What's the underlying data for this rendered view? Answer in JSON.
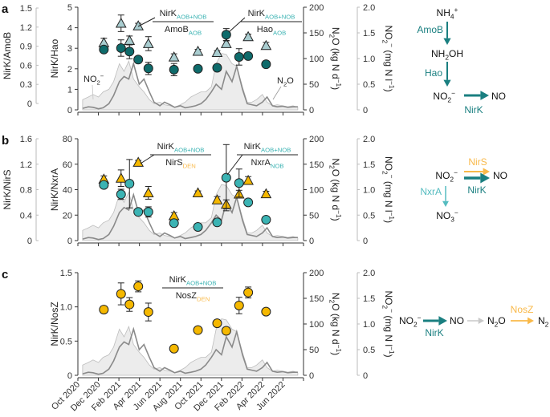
{
  "chart_data": {
    "type": "scatter+line+area",
    "x_axis": {
      "range": [
        "2020-10-01",
        "2022-08-01"
      ],
      "tick_labels": [
        "Oct 2020",
        "Dec 2020",
        "Feb 2021",
        "Apr 2021",
        "Jun 2021",
        "Aug 2021",
        "Oct 2021",
        "Dec 2021",
        "Feb 2022",
        "Apr 2022",
        "Jun 2022"
      ]
    },
    "right_axes": {
      "n2o": {
        "label": [
          [
            "N",
            ""
          ],
          [
            "2",
            "sub"
          ],
          [
            "O (kg N d",
            ""
          ],
          [
            "−1",
            "sup"
          ],
          [
            ")",
            ""
          ]
        ],
        "range": [
          0,
          200
        ],
        "ticks": [
          "0",
          "50",
          "100",
          "150",
          "200"
        ]
      },
      "no2": {
        "label": [
          [
            "NO",
            ""
          ],
          [
            "2",
            "sub"
          ],
          [
            "−",
            "sup"
          ],
          [
            " (mg N l",
            ""
          ],
          [
            "−1",
            "sup"
          ],
          [
            ")",
            ""
          ]
        ],
        "range": [
          0,
          2
        ],
        "ticks": [
          "0",
          "0.5",
          "1.0",
          "1.5",
          "2.0"
        ]
      }
    },
    "environment": {
      "dates": [
        "2020-10-15",
        "2020-11-01",
        "2020-11-15",
        "2020-12-01",
        "2020-12-15",
        "2021-01-01",
        "2021-01-15",
        "2021-02-01",
        "2021-02-15",
        "2021-03-01",
        "2021-03-15",
        "2021-04-01",
        "2021-04-15",
        "2021-05-01",
        "2021-05-15",
        "2021-06-01",
        "2021-06-15",
        "2021-07-01",
        "2021-07-15",
        "2021-08-01",
        "2021-08-15",
        "2021-09-01",
        "2021-09-15",
        "2021-10-01",
        "2021-10-15",
        "2021-11-01",
        "2021-11-15",
        "2021-12-01",
        "2021-12-15",
        "2022-01-01",
        "2022-01-15",
        "2022-02-01",
        "2022-02-15",
        "2022-03-01",
        "2022-03-15",
        "2022-04-01",
        "2022-04-15",
        "2022-05-01",
        "2022-05-15",
        "2022-06-01",
        "2022-06-15",
        "2022-07-01",
        "2022-07-15"
      ],
      "n2o_kgN_per_day": [
        3,
        6,
        5,
        2,
        4,
        12,
        28,
        55,
        65,
        60,
        90,
        50,
        60,
        35,
        15,
        8,
        15,
        10,
        5,
        8,
        4,
        6,
        8,
        12,
        20,
        35,
        50,
        40,
        75,
        55,
        85,
        40,
        12,
        10,
        8,
        15,
        25,
        8,
        6,
        7,
        5,
        6,
        6
      ],
      "no2_mgN_per_l": [
        0.2,
        0.25,
        0.3,
        0.25,
        0.35,
        0.4,
        0.55,
        0.9,
        0.75,
        0.95,
        0.6,
        0.45,
        0.35,
        0.2,
        0.12,
        0.15,
        0.1,
        0.08,
        0.05,
        0.1,
        0.15,
        0.25,
        0.3,
        0.35,
        0.35,
        0.45,
        0.9,
        1.1,
        1.08,
        0.9,
        0.85,
        0.45,
        0.15,
        0.15,
        0.2,
        0.3,
        0.15,
        0.08,
        0.1,
        0.08,
        0.06,
        0.08,
        0.05
      ],
      "no2_series_label": [
        [
          "NO",
          ""
        ],
        [
          "2",
          "sub"
        ],
        [
          "−",
          "sup"
        ]
      ],
      "n2o_series_label": [
        [
          "N",
          ""
        ],
        [
          "2",
          "sub"
        ],
        [
          "O",
          ""
        ]
      ],
      "n2o_color": "#8a8a8a",
      "no2_color": "#bdbdbd"
    },
    "panels": [
      {
        "label": "a",
        "outer_axis": {
          "label": [
            [
              "NirK/AmoB",
              ""
            ]
          ],
          "range": [
            0,
            1.5
          ],
          "ticks": [
            "0",
            "0.3",
            "0.6",
            "0.9",
            "1.2",
            "1.5"
          ]
        },
        "left_axis": {
          "label": [
            [
              "NirK/Hao",
              ""
            ]
          ],
          "range": [
            0,
            5
          ],
          "ticks": [
            "0",
            "1",
            "2",
            "3",
            "4",
            "5"
          ]
        },
        "series": [
          {
            "axis": "outer",
            "marker": "triangle",
            "color": "#a9cdd0",
            "points": [
              [
                "2020-12-17",
                0.955,
                0.07
              ],
              [
                "2021-02-06",
                1.26,
                0.13
              ],
              [
                "2021-03-03",
                0.99,
                0.07
              ],
              [
                "2021-03-29",
                1.22,
                0.04
              ],
              [
                "2021-04-28",
                0.94,
                0.11
              ],
              [
                "2021-07-13",
                0.73,
                0.05
              ],
              [
                "2021-09-22",
                0.82,
                0.03
              ],
              [
                "2021-11-18",
                0.8,
                0.03
              ],
              [
                "2021-12-15",
                0.94,
                0.05
              ],
              [
                "2022-02-18",
                1.05,
                0.04
              ],
              [
                "2022-04-12",
                0.91,
                0.05
              ]
            ]
          },
          {
            "axis": "left",
            "marker": "circle",
            "color": "#0e6b6b",
            "points": [
              [
                "2020-12-17",
                2.94,
                0.15
              ],
              [
                "2021-02-06",
                3.01,
                0.4
              ],
              [
                "2021-03-03",
                2.84,
                0.35
              ],
              [
                "2021-03-29",
                2.45,
                0.1
              ],
              [
                "2021-04-28",
                2.02,
                0.3
              ],
              [
                "2021-07-13",
                1.96,
                0.3
              ],
              [
                "2021-09-22",
                2.0,
                0.15
              ],
              [
                "2021-11-18",
                2.05,
                0.05
              ],
              [
                "2021-12-15",
                3.66,
                0.3
              ],
              [
                "2022-01-22",
                2.58,
                0.4
              ],
              [
                "2022-02-18",
                2.62,
                0.1
              ],
              [
                "2022-04-12",
                2.22,
                0.05
              ]
            ]
          }
        ],
        "annotations": [
          {
            "num": [
              [
                "NirK",
                ""
              ],
              [
                "AOB+NOB",
                "subteal"
              ]
            ],
            "den": [
              [
                "AmoB",
                ""
              ],
              [
                "AOB",
                "subteal"
              ]
            ]
          },
          {
            "num": [
              [
                "NirK",
                ""
              ],
              [
                "AOB+NOB",
                "subteal"
              ]
            ],
            "den": [
              [
                "Hao",
                ""
              ],
              [
                "AOB",
                "subteal"
              ]
            ]
          }
        ],
        "pathway": {
          "species": [
            [
              [
                "NH",
                ""
              ],
              [
                "4",
                "sub"
              ],
              [
                "+",
                "sup"
              ]
            ],
            [
              [
                "NH",
                ""
              ],
              [
                "2",
                "sub"
              ],
              [
                "OH",
                ""
              ]
            ],
            [
              [
                "NO",
                ""
              ],
              [
                "2",
                "sub"
              ],
              [
                "−",
                "sup"
              ]
            ],
            [
              [
                "NO",
                ""
              ]
            ]
          ],
          "enzymes": [
            "AmoB",
            "Hao",
            "NirK"
          ],
          "color": "#1a7f80"
        }
      },
      {
        "label": "b",
        "outer_axis": {
          "label": [
            [
              "NirK/NirS",
              ""
            ]
          ],
          "range": [
            0,
            1.6
          ],
          "ticks": [
            "0",
            "0.4",
            "0.8",
            "1.2",
            "1.6"
          ]
        },
        "left_axis": {
          "label": [
            [
              "NirK/NxrA",
              ""
            ]
          ],
          "range": [
            0,
            80
          ],
          "ticks": [
            "0",
            "20",
            "40",
            "60",
            "80"
          ]
        },
        "series": [
          {
            "axis": "outer",
            "marker": "triangle",
            "color": "#f5b800",
            "points": [
              [
                "2020-12-17",
                0.966,
                0.05
              ],
              [
                "2021-02-06",
                0.98,
                0.13
              ],
              [
                "2021-03-29",
                1.23,
                0.03
              ],
              [
                "2021-04-28",
                0.75,
                0.1
              ],
              [
                "2021-07-13",
                0.39,
                0.05
              ],
              [
                "2021-09-22",
                0.75,
                0.03
              ],
              [
                "2021-11-18",
                0.64,
                0.05
              ],
              [
                "2021-12-15",
                0.57,
                0.07
              ],
              [
                "2022-01-22",
                0.73,
                0.06
              ],
              [
                "2022-02-18",
                0.945,
                0.06
              ],
              [
                "2022-04-12",
                0.735,
                0.04
              ]
            ]
          },
          {
            "axis": "left",
            "marker": "circle",
            "color": "#3bb3b3",
            "points": [
              [
                "2020-12-17",
                43.7,
                2
              ],
              [
                "2021-02-06",
                36.3,
                4
              ],
              [
                "2021-03-03",
                44.7,
                19
              ],
              [
                "2021-03-29",
                22.5,
                2
              ],
              [
                "2021-04-28",
                22.5,
                4
              ],
              [
                "2021-07-13",
                13.7,
                1
              ],
              [
                "2021-09-22",
                10.7,
                1
              ],
              [
                "2021-11-18",
                14.3,
                1
              ],
              [
                "2021-12-15",
                49.4,
                26
              ],
              [
                "2022-01-22",
                45.2,
                11
              ],
              [
                "2022-02-18",
                30.0,
                1
              ],
              [
                "2022-04-12",
                16.4,
                1
              ]
            ]
          }
        ],
        "annotations": [
          {
            "num": [
              [
                "NirK",
                ""
              ],
              [
                "AOB+NOB",
                "subteal"
              ]
            ],
            "den": [
              [
                "NirS",
                ""
              ],
              [
                "DEN",
                "suborange"
              ]
            ]
          },
          {
            "num": [
              [
                "NirK",
                ""
              ],
              [
                "AOB+NOB",
                "subteal"
              ]
            ],
            "den": [
              [
                "NxrA",
                ""
              ],
              [
                "NOB",
                "subteal"
              ]
            ]
          }
        ],
        "pathway": {
          "species": [
            [
              [
                "NO",
                ""
              ],
              [
                "2",
                "sub"
              ],
              [
                "−",
                "sup"
              ]
            ],
            [
              [
                "NO",
                ""
              ]
            ],
            [
              [
                "NO",
                ""
              ],
              [
                "3",
                "sub"
              ],
              [
                "−",
                "sup"
              ]
            ]
          ],
          "enzymes": [
            "NirS",
            "NirK",
            "NxrA"
          ],
          "colors": {
            "NirS": "#f9b94a",
            "NirK": "#1a7f80",
            "NxrA": "#55bcc0"
          }
        }
      },
      {
        "label": "c",
        "left_axis": {
          "label": [
            [
              "NirK/NosZ",
              ""
            ]
          ],
          "range": [
            0,
            1.5
          ],
          "ticks": [
            "0",
            "0.5",
            "1.0",
            "1.5"
          ]
        },
        "series": [
          {
            "axis": "left",
            "marker": "circle",
            "color": "#f5b800",
            "points": [
              [
                "2020-12-17",
                0.96,
                0.05
              ],
              [
                "2021-02-06",
                1.19,
                0.16
              ],
              [
                "2021-03-03",
                1.035,
                0.1
              ],
              [
                "2021-03-29",
                1.3,
                0.08
              ],
              [
                "2021-04-28",
                0.925,
                0.13
              ],
              [
                "2021-07-13",
                0.39,
                0.02
              ],
              [
                "2021-09-22",
                0.66,
                0.02
              ],
              [
                "2021-11-18",
                0.76,
                0.03
              ],
              [
                "2021-12-15",
                0.65,
                0.05
              ],
              [
                "2022-01-22",
                1.02,
                0.12
              ],
              [
                "2022-02-18",
                1.21,
                0.08
              ],
              [
                "2022-04-12",
                0.93,
                0.04
              ]
            ]
          }
        ],
        "annotations": [
          {
            "num": [
              [
                "NirK",
                ""
              ],
              [
                "AOB+NOB",
                "subteal"
              ]
            ],
            "den": [
              [
                "NosZ",
                ""
              ],
              [
                "DEN",
                "suborange"
              ]
            ]
          }
        ],
        "pathway": {
          "species": [
            [
              [
                "NO",
                ""
              ],
              [
                "2",
                "sub"
              ],
              [
                "−",
                "sup"
              ]
            ],
            [
              [
                "NO",
                ""
              ]
            ],
            [
              [
                "N",
                ""
              ],
              [
                "2",
                "sub"
              ],
              [
                "O",
                ""
              ]
            ],
            [
              [
                "N",
                ""
              ],
              [
                "2",
                "sub"
              ]
            ]
          ],
          "enzymes": [
            "NirK",
            "NosZ"
          ],
          "colors": {
            "NirK": "#1a7f80",
            "unlabeled": "#c8c8c8",
            "NosZ": "#f9b94a"
          }
        }
      }
    ]
  }
}
